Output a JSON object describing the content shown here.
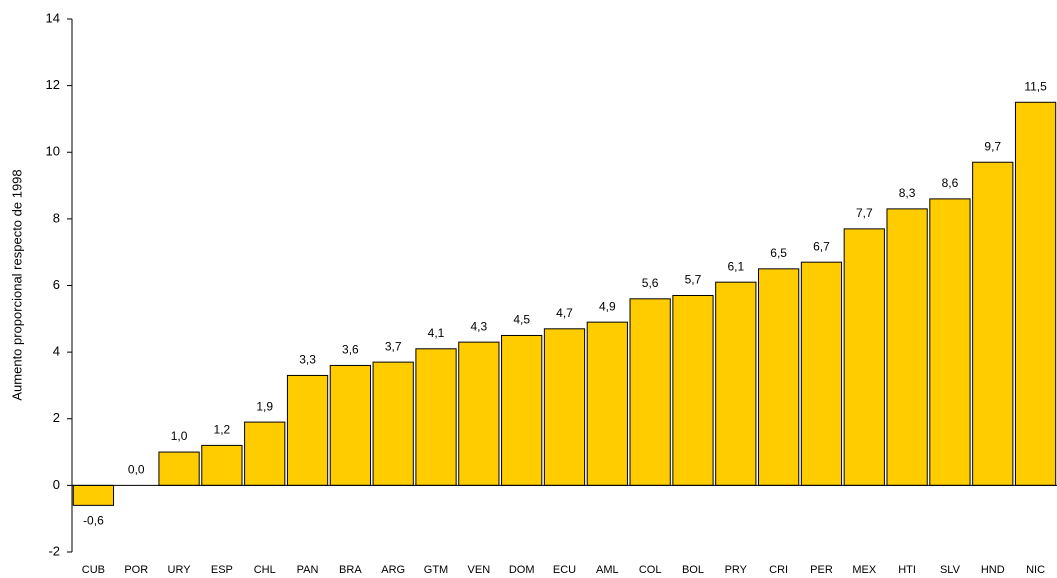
{
  "chart_data": {
    "type": "bar",
    "y_label": "Aumento proporcional respecto de 1998",
    "categories": [
      "CUB",
      "POR",
      "URY",
      "ESP",
      "CHL",
      "PAN",
      "BRA",
      "ARG",
      "GTM",
      "VEN",
      "DOM",
      "ECU",
      "AML",
      "COL",
      "BOL",
      "PRY",
      "CRI",
      "PER",
      "MEX",
      "HTI",
      "SLV",
      "HND",
      "NIC"
    ],
    "values": [
      -0.6,
      0.0,
      1.0,
      1.2,
      1.9,
      3.3,
      3.6,
      3.7,
      4.1,
      4.3,
      4.5,
      4.7,
      4.9,
      5.6,
      5.7,
      6.1,
      6.5,
      6.7,
      7.7,
      8.3,
      8.6,
      9.7,
      11.5
    ],
    "value_labels": [
      "-0,6",
      "0,0",
      "1,0",
      "1,2",
      "1,9",
      "3,3",
      "3,6",
      "3,7",
      "4,1",
      "4,3",
      "4,5",
      "4,7",
      "4,9",
      "5,6",
      "5,7",
      "6,1",
      "6,5",
      "6,7",
      "7,7",
      "8,3",
      "8,6",
      "9,7",
      "11,5"
    ],
    "color": "#ffcc00",
    "ylim": [
      -2,
      14
    ],
    "yticks": [
      -2,
      0,
      2,
      4,
      6,
      8,
      10,
      12,
      14
    ],
    "grid": false
  }
}
